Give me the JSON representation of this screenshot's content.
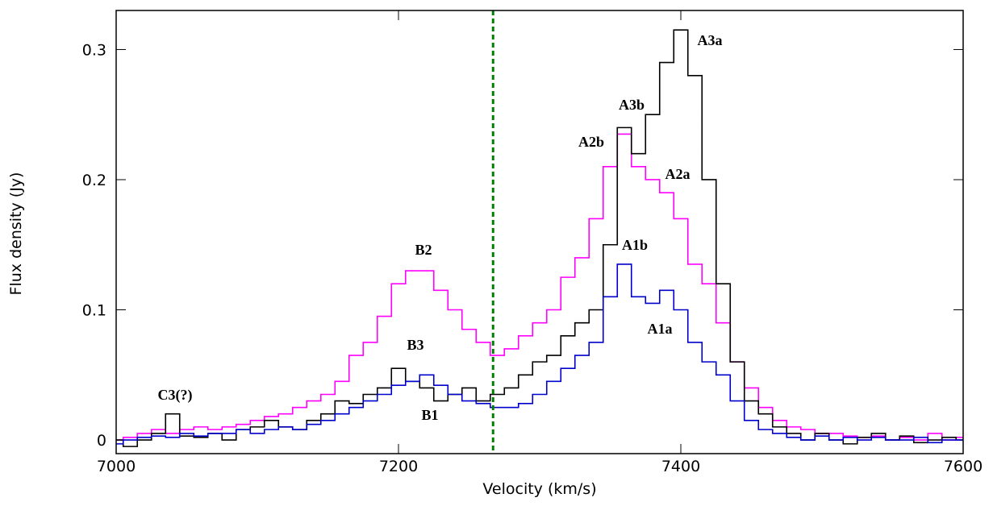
{
  "chart_data": {
    "type": "step",
    "x_label": "Velocity (km/s)",
    "y_label": "Flux density (Jy)",
    "x": [
      7000,
      7010,
      7020,
      7030,
      7040,
      7050,
      7060,
      7070,
      7080,
      7090,
      7100,
      7110,
      7120,
      7130,
      7140,
      7150,
      7160,
      7170,
      7180,
      7190,
      7200,
      7210,
      7220,
      7230,
      7240,
      7250,
      7260,
      7270,
      7280,
      7290,
      7300,
      7310,
      7320,
      7330,
      7340,
      7350,
      7360,
      7370,
      7380,
      7390,
      7400,
      7410,
      7420,
      7430,
      7440,
      7450,
      7460,
      7470,
      7480,
      7490,
      7500,
      7510,
      7520,
      7530,
      7540,
      7550,
      7560,
      7570,
      7580,
      7590,
      7600
    ],
    "series": [
      {
        "color": "#ff00ff",
        "values": [
          0.0,
          0.002,
          0.005,
          0.008,
          0.005,
          0.008,
          0.01,
          0.008,
          0.01,
          0.012,
          0.015,
          0.018,
          0.02,
          0.025,
          0.03,
          0.035,
          0.045,
          0.065,
          0.075,
          0.095,
          0.12,
          0.13,
          0.13,
          0.115,
          0.1,
          0.085,
          0.075,
          0.065,
          0.07,
          0.08,
          0.09,
          0.1,
          0.125,
          0.14,
          0.17,
          0.21,
          0.235,
          0.21,
          0.2,
          0.19,
          0.17,
          0.135,
          0.12,
          0.09,
          0.06,
          0.04,
          0.025,
          0.015,
          0.01,
          0.008,
          0.005,
          0.005,
          0.003,
          0.002,
          0.003,
          0.0,
          0.002,
          0.0,
          0.005,
          0.0,
          0.002
        ]
      },
      {
        "color": "#000000",
        "values": [
          0.0,
          -0.005,
          0.0,
          0.005,
          0.02,
          0.003,
          0.002,
          0.005,
          0.0,
          0.008,
          0.01,
          0.015,
          0.01,
          0.008,
          0.015,
          0.02,
          0.03,
          0.028,
          0.035,
          0.04,
          0.055,
          0.045,
          0.04,
          0.03,
          0.035,
          0.04,
          0.03,
          0.035,
          0.04,
          0.05,
          0.06,
          0.065,
          0.08,
          0.09,
          0.1,
          0.15,
          0.24,
          0.22,
          0.25,
          0.29,
          0.315,
          0.28,
          0.2,
          0.12,
          0.06,
          0.03,
          0.02,
          0.01,
          0.005,
          0.0,
          0.005,
          0.0,
          -0.003,
          0.002,
          0.005,
          0.0,
          0.003,
          -0.002,
          0.0,
          0.002,
          0.0
        ]
      },
      {
        "color": "#0000cc",
        "values": [
          -0.003,
          0.0,
          0.002,
          0.003,
          0.002,
          0.005,
          0.003,
          0.005,
          0.005,
          0.008,
          0.005,
          0.008,
          0.01,
          0.008,
          0.012,
          0.015,
          0.02,
          0.025,
          0.03,
          0.035,
          0.042,
          0.045,
          0.05,
          0.042,
          0.035,
          0.03,
          0.028,
          0.025,
          0.025,
          0.028,
          0.035,
          0.045,
          0.055,
          0.065,
          0.075,
          0.11,
          0.135,
          0.11,
          0.105,
          0.115,
          0.1,
          0.075,
          0.06,
          0.05,
          0.03,
          0.015,
          0.008,
          0.005,
          0.002,
          0.0,
          0.003,
          0.0,
          0.002,
          0.0,
          0.002,
          0.0,
          0.0,
          0.002,
          -0.002,
          0.0,
          0.0
        ]
      }
    ],
    "vlines": [
      {
        "value": 7267,
        "color": "#008000"
      }
    ],
    "annotations": [
      {
        "text": "A3a",
        "color": "#000000"
      },
      {
        "text": "A3b",
        "color": "#000000"
      },
      {
        "text": "A2b",
        "color": "#ff00ff"
      },
      {
        "text": "A2a",
        "color": "#ff00ff"
      },
      {
        "text": "A1b",
        "color": "#0000cc"
      },
      {
        "text": "A1a",
        "color": "#0000cc"
      },
      {
        "text": "B2",
        "color": "#ff00ff"
      },
      {
        "text": "B3",
        "color": "#000000"
      },
      {
        "text": "B1",
        "color": "#0000cc"
      },
      {
        "text": "C3(?)",
        "color": "#000000"
      }
    ],
    "xlim": [
      7000,
      7600
    ],
    "xticks": [
      7000,
      7200,
      7400,
      7600
    ],
    "ylim": [
      -0.0105,
      0.33
    ],
    "yticks": [
      0,
      0.1,
      0.2,
      0.3
    ]
  }
}
